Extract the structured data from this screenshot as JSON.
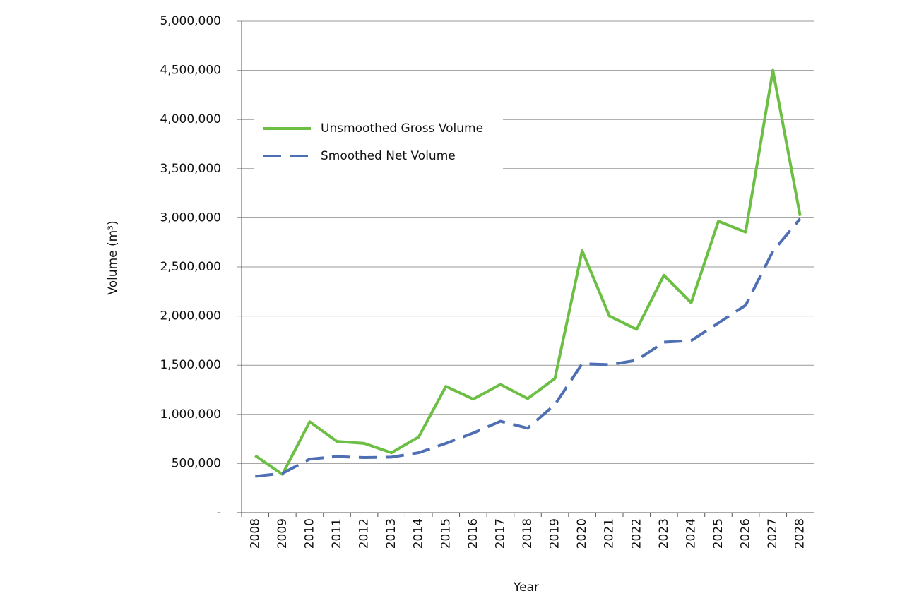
{
  "chart_data": {
    "type": "line",
    "x_label": "Year",
    "y_label": "Volume (m³)",
    "categories": [
      "2008",
      "2009",
      "2010",
      "2011",
      "2012",
      "2013",
      "2014",
      "2015",
      "2016",
      "2017",
      "2018",
      "2019",
      "2020",
      "2021",
      "2022",
      "2023",
      "2024",
      "2025",
      "2026",
      "2027",
      "2028"
    ],
    "series": [
      {
        "name": "Unsmoothed Gross Volume",
        "color": "#6cbf44",
        "dash": false,
        "values": [
          580000,
          390000,
          925000,
          725000,
          705000,
          610000,
          770000,
          1285000,
          1155000,
          1305000,
          1160000,
          1365000,
          2665000,
          2000000,
          1865000,
          2415000,
          2135000,
          2965000,
          2855000,
          4500000,
          3020000
        ]
      },
      {
        "name": "Smoothed Net Volume",
        "color": "#4f6fb5",
        "dash": true,
        "values": [
          370000,
          400000,
          545000,
          570000,
          560000,
          565000,
          610000,
          705000,
          810000,
          930000,
          860000,
          1100000,
          1515000,
          1505000,
          1550000,
          1735000,
          1750000,
          1930000,
          2110000,
          2660000,
          2990000
        ]
      }
    ],
    "ylim": [
      0,
      5000000
    ],
    "yticks": [
      {
        "value": 0,
        "label": "-"
      },
      {
        "value": 500000,
        "label": "500,000"
      },
      {
        "value": 1000000,
        "label": "1,000,000"
      },
      {
        "value": 1500000,
        "label": "1,500,000"
      },
      {
        "value": 2000000,
        "label": "2,000,000"
      },
      {
        "value": 2500000,
        "label": "2,500,000"
      },
      {
        "value": 3000000,
        "label": "3,000,000"
      },
      {
        "value": 3500000,
        "label": "3,500,000"
      },
      {
        "value": 4000000,
        "label": "4,000,000"
      },
      {
        "value": 4500000,
        "label": "4,500,000"
      },
      {
        "value": 5000000,
        "label": "5,000,000"
      }
    ],
    "grid": true,
    "legend": "upper-left"
  }
}
